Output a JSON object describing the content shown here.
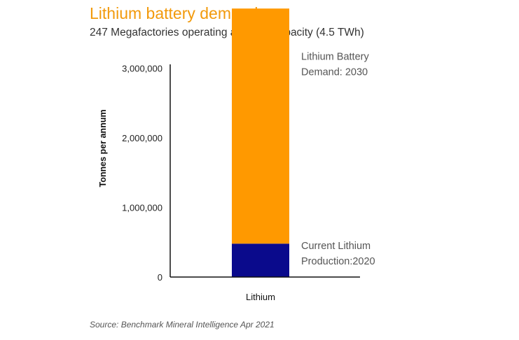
{
  "chart_data": {
    "type": "bar",
    "title": "Lithium battery demand",
    "subtitle": "247 Megafactories operating at 100% capacity  (4.5 TWh)",
    "ylabel": "Tonnes per annum",
    "xlabel": "",
    "categories": [
      "Lithium"
    ],
    "ylim": [
      0,
      3500000
    ],
    "yticks": [
      0,
      1000000,
      2000000,
      3000000
    ],
    "ytick_labels": [
      "0",
      "1,000,000",
      "2,000,000",
      "3,000,000"
    ],
    "grid": false,
    "stacked": true,
    "series": [
      {
        "name": "Current Lithium Production:2020",
        "values": [
          480000
        ],
        "color": "#0a0a8c"
      },
      {
        "name": "Lithium Battery Demand: 2030",
        "values": [
          3380000
        ],
        "color": "#ff9900"
      }
    ],
    "annotations": [
      {
        "lines": [
          "Lithium Battery",
          "Demand: 2030"
        ],
        "anchor_value": 3000000
      },
      {
        "lines": [
          "Current Lithium",
          "Production:2020"
        ],
        "anchor_value": 280000
      }
    ],
    "source": "Source: Benchmark Mineral Intelligence Apr 2021"
  }
}
